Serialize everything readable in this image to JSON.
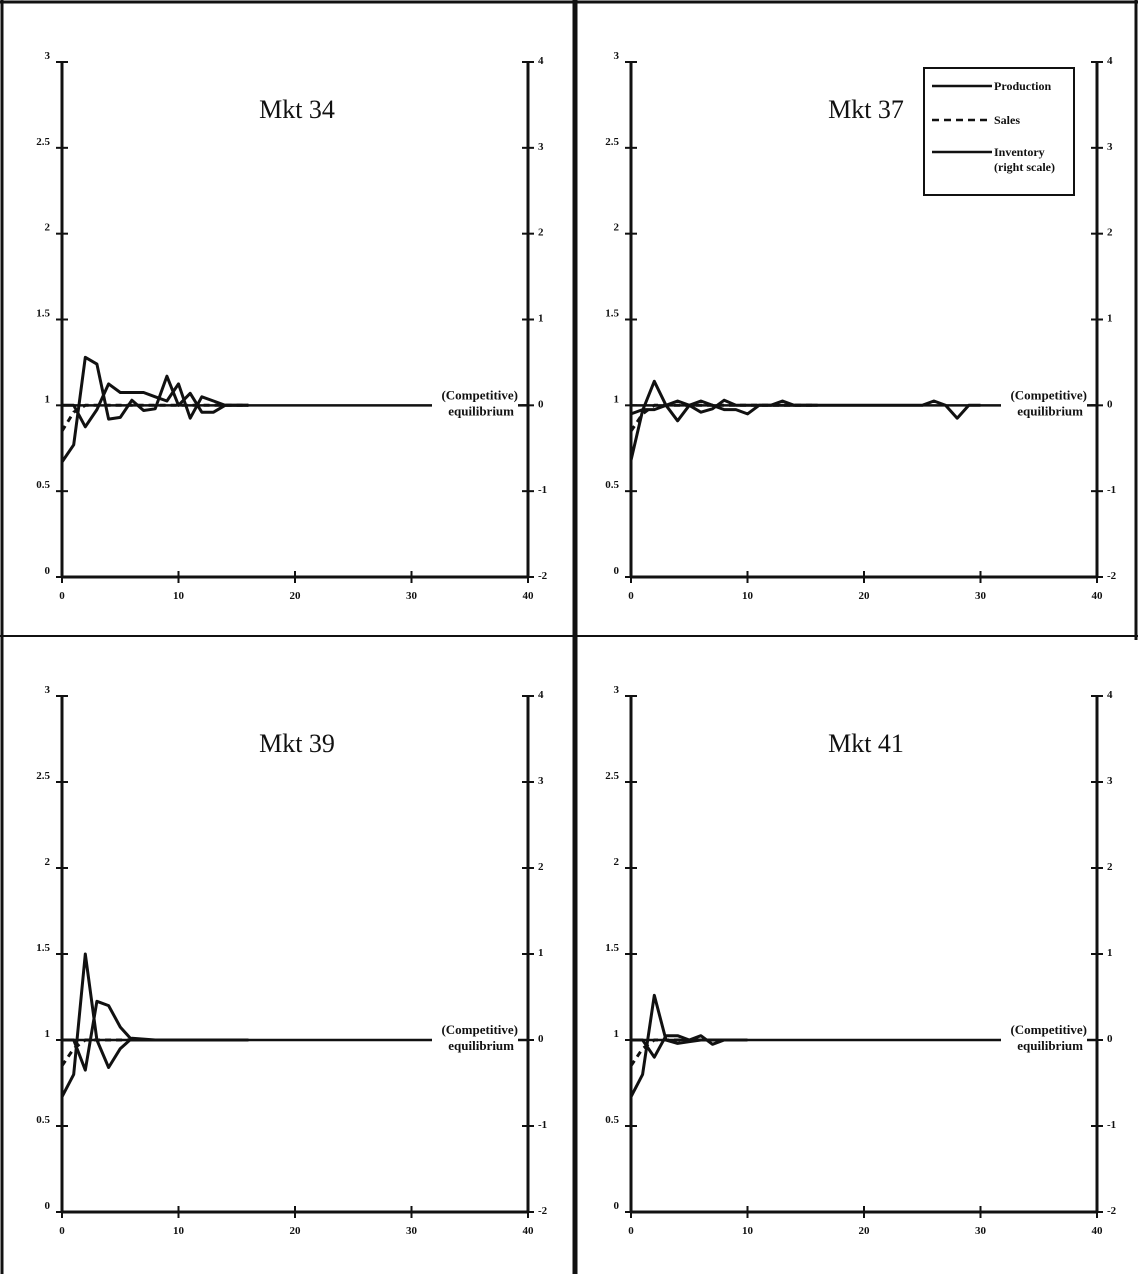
{
  "chart_data": [
    {
      "type": "line",
      "title": "Mkt 34",
      "xlim": [
        0,
        40
      ],
      "ylim": [
        0,
        3
      ],
      "y2lim": [
        -2,
        4
      ],
      "x_ticks": [
        "0",
        "10",
        "20",
        "30",
        "40"
      ],
      "y_ticks": [
        "0",
        "0.5",
        "1",
        "1.5",
        "2",
        "2.5",
        "3"
      ],
      "y2_ticks": [
        "-2",
        "-1",
        "0",
        "1",
        "2",
        "3",
        "4"
      ],
      "annotation": [
        "(Competitive)",
        "equilibrium"
      ],
      "series": [
        {
          "name": "Production",
          "axis": "left",
          "style": "solid",
          "x": [
            0,
            1,
            2,
            3,
            4,
            5,
            6,
            7,
            8,
            9,
            10,
            11,
            12,
            13,
            14,
            15,
            16
          ],
          "y": [
            0.67,
            0.77,
            1.28,
            1.24,
            0.92,
            0.93,
            1.03,
            0.97,
            0.98,
            1.17,
            1.0,
            1.07,
            0.96,
            0.96,
            1.0,
            1.0,
            1.0
          ]
        },
        {
          "name": "Sales",
          "axis": "left",
          "style": "dashed",
          "x": [
            0,
            1,
            2,
            3,
            4,
            5,
            6,
            7,
            8,
            9,
            10,
            11,
            12,
            13,
            14,
            15,
            16
          ],
          "y": [
            0.85,
            0.96,
            1.0,
            1.0,
            1.0,
            1.0,
            1.0,
            1.0,
            1.0,
            1.0,
            1.0,
            1.0,
            1.0,
            1.0,
            1.0,
            1.0,
            1.0
          ]
        },
        {
          "name": "Inventory",
          "axis": "right",
          "style": "solid",
          "x": [
            0,
            1,
            2,
            3,
            4,
            5,
            6,
            7,
            8,
            9,
            10,
            11,
            12,
            13,
            14,
            15,
            16
          ],
          "y": [
            0.0,
            0.0,
            -0.25,
            -0.05,
            0.25,
            0.15,
            0.15,
            0.15,
            0.1,
            0.05,
            0.25,
            -0.15,
            0.1,
            0.05,
            0.0,
            0.0,
            0.0
          ]
        }
      ]
    },
    {
      "type": "line",
      "title": "Mkt 37",
      "xlim": [
        0,
        40
      ],
      "ylim": [
        0,
        3
      ],
      "y2lim": [
        -2,
        4
      ],
      "x_ticks": [
        "0",
        "10",
        "20",
        "30",
        "40"
      ],
      "y_ticks": [
        "0",
        "0.5",
        "1",
        "1.5",
        "2",
        "2.5",
        "3"
      ],
      "y2_ticks": [
        "-2",
        "-1",
        "0",
        "1",
        "2",
        "3",
        "4"
      ],
      "annotation": [
        "(Competitive)",
        "equilibrium"
      ],
      "legend": {
        "position": "top-right",
        "entries": [
          {
            "label": "Production",
            "style": "solid"
          },
          {
            "label": "Sales",
            "style": "dashed"
          },
          {
            "label": "Inventory",
            "note": "(right scale)",
            "style": "solid"
          }
        ]
      },
      "series": [
        {
          "name": "Production",
          "axis": "left",
          "style": "solid",
          "x": [
            0,
            1,
            2,
            3,
            4,
            5,
            6,
            7,
            8,
            9,
            10,
            11,
            12,
            13,
            14,
            15,
            16
          ],
          "y": [
            0.68,
            0.97,
            1.14,
            1.0,
            0.91,
            1.0,
            0.96,
            0.98,
            1.03,
            1.0,
            1.0,
            1.0,
            1.0,
            1.0,
            1.0,
            1.0,
            1.0
          ]
        },
        {
          "name": "Sales",
          "axis": "left",
          "style": "dashed",
          "x": [
            0,
            1,
            2,
            3,
            4,
            5,
            6,
            7,
            8,
            9,
            10,
            11,
            12,
            13,
            14,
            15,
            16
          ],
          "y": [
            0.85,
            0.95,
            1.0,
            1.0,
            1.0,
            1.0,
            1.0,
            1.0,
            1.0,
            1.0,
            1.0,
            1.0,
            1.0,
            1.0,
            1.0,
            1.0,
            1.0
          ]
        },
        {
          "name": "Inventory",
          "axis": "right",
          "style": "solid",
          "x": [
            0,
            1,
            2,
            3,
            4,
            5,
            6,
            7,
            8,
            9,
            10,
            11,
            12,
            13,
            14,
            25,
            26,
            27,
            28,
            29,
            30
          ],
          "y": [
            -0.1,
            -0.05,
            -0.05,
            0.0,
            0.05,
            0.0,
            0.05,
            0.0,
            -0.05,
            -0.05,
            -0.1,
            0.0,
            0.0,
            0.05,
            0.0,
            0.0,
            0.05,
            0.0,
            -0.15,
            0.0,
            0.0
          ]
        }
      ]
    },
    {
      "type": "line",
      "title": "Mkt 39",
      "xlim": [
        0,
        40
      ],
      "ylim": [
        0,
        3
      ],
      "y2lim": [
        -2,
        4
      ],
      "x_ticks": [
        "0",
        "10",
        "20",
        "30",
        "40"
      ],
      "y_ticks": [
        "0",
        "0.5",
        "1",
        "1.5",
        "2",
        "2.5",
        "3"
      ],
      "y2_ticks": [
        "-2",
        "-1",
        "0",
        "1",
        "2",
        "3",
        "4"
      ],
      "annotation": [
        "(Competitive)",
        "equilibrium"
      ],
      "series": [
        {
          "name": "Production",
          "axis": "left",
          "style": "solid",
          "x": [
            0,
            1,
            2,
            3,
            4,
            5,
            6,
            8,
            10,
            16
          ],
          "y": [
            0.67,
            0.8,
            1.5,
            1.0,
            0.84,
            0.95,
            1.01,
            1.0,
            1.0,
            1.0
          ]
        },
        {
          "name": "Sales",
          "axis": "left",
          "style": "dashed",
          "x": [
            0,
            1,
            2,
            3,
            4,
            5,
            6,
            8,
            10
          ],
          "y": [
            0.85,
            0.95,
            1.0,
            1.0,
            1.0,
            1.0,
            1.0,
            1.0,
            1.0
          ]
        },
        {
          "name": "Inventory",
          "axis": "right",
          "style": "solid",
          "x": [
            0,
            1,
            2,
            3,
            4,
            5,
            6,
            8,
            10,
            16
          ],
          "y": [
            0.0,
            0.0,
            -0.35,
            0.45,
            0.4,
            0.15,
            0.0,
            0.0,
            0.0,
            0.0
          ]
        }
      ]
    },
    {
      "type": "line",
      "title": "Mkt 41",
      "xlim": [
        0,
        40
      ],
      "ylim": [
        0,
        3
      ],
      "y2lim": [
        -2,
        4
      ],
      "x_ticks": [
        "0",
        "10",
        "20",
        "30",
        "40"
      ],
      "y_ticks": [
        "0",
        "0.5",
        "1",
        "1.5",
        "2",
        "2.5",
        "3"
      ],
      "y2_ticks": [
        "-2",
        "-1",
        "0",
        "1",
        "2",
        "3",
        "4"
      ],
      "annotation": [
        "(Competitive)",
        "equilibrium"
      ],
      "series": [
        {
          "name": "Production",
          "axis": "left",
          "style": "solid",
          "x": [
            0,
            1,
            2,
            3,
            4,
            5,
            6,
            7,
            8,
            10
          ],
          "y": [
            0.67,
            0.8,
            1.26,
            1.0,
            0.98,
            0.99,
            1.0,
            1.0,
            1.0,
            1.0
          ]
        },
        {
          "name": "Sales",
          "axis": "left",
          "style": "dashed",
          "x": [
            0,
            1,
            2,
            3,
            4,
            5,
            6,
            8,
            10
          ],
          "y": [
            0.85,
            0.95,
            1.0,
            1.0,
            1.0,
            1.0,
            1.0,
            1.0,
            1.0
          ]
        },
        {
          "name": "Inventory",
          "axis": "right",
          "style": "solid",
          "x": [
            0,
            1,
            2,
            3,
            4,
            5,
            6,
            7,
            8,
            10
          ],
          "y": [
            0.0,
            0.0,
            -0.2,
            0.05,
            0.05,
            0.0,
            0.05,
            -0.05,
            0.0,
            0.0
          ]
        }
      ]
    }
  ]
}
